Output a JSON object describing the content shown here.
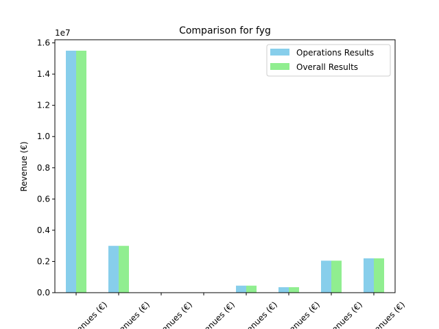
{
  "chart_data": {
    "type": "bar",
    "title": "Comparison for fyg",
    "ylabel": "Revenue (€)",
    "xlabel": "",
    "offset_label": "1e7",
    "ylim": [
      0,
      16200000
    ],
    "yticks": [
      0,
      2000000,
      4000000,
      6000000,
      8000000,
      10000000,
      12000000,
      14000000,
      16000000
    ],
    "ytick_labels": [
      "0.0",
      "0.2",
      "0.4",
      "0.6",
      "0.8",
      "1.0",
      "1.2",
      "1.4",
      "1.6"
    ],
    "categories": [
      "Revenues (€)",
      "Revenues (€)",
      "Revenues (€)",
      "Revenues (€)",
      "Revenues (€)",
      "Revenues (€)",
      "Revenues (€)",
      "Revenues (€)"
    ],
    "series": [
      {
        "name": "Operations Results",
        "color": "#87ceeb",
        "values": [
          15500000,
          3000000,
          0,
          0,
          450000,
          350000,
          2050000,
          2200000
        ]
      },
      {
        "name": "Overall Results",
        "color": "#90ee90",
        "values": [
          15500000,
          3000000,
          0,
          0,
          450000,
          350000,
          2050000,
          2200000
        ]
      }
    ],
    "legend_position": "top-right",
    "grid": false
  }
}
